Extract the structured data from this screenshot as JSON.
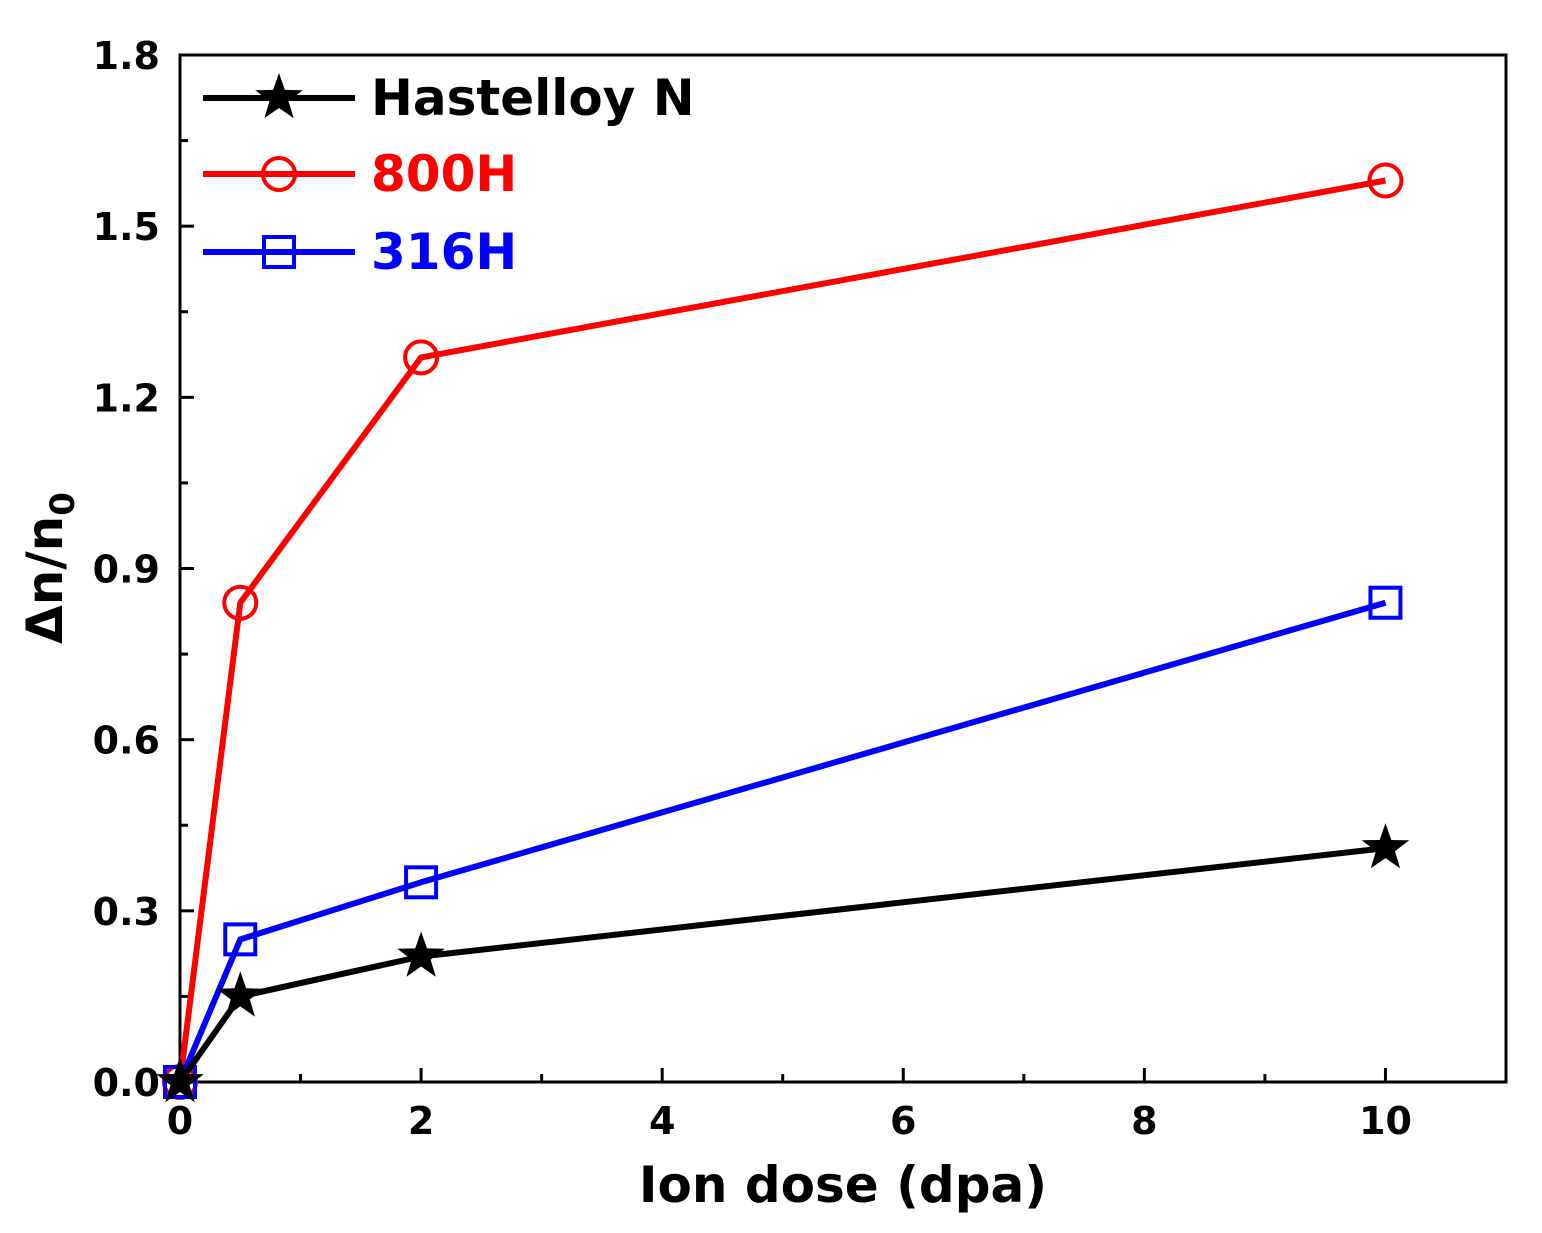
{
  "chart_data": {
    "type": "line",
    "xlabel": "Ion dose (dpa)",
    "ylabel_main": "Δn/n",
    "ylabel_subscript": "0",
    "xlim": [
      0,
      11
    ],
    "ylim": [
      0,
      1.8
    ],
    "xticks": [
      0,
      2,
      4,
      6,
      8,
      10
    ],
    "xtick_labels": [
      "0",
      "2",
      "4",
      "6",
      "8",
      "10"
    ],
    "xminor": [
      1,
      3,
      5,
      7,
      9,
      11
    ],
    "yticks": [
      0,
      0.3,
      0.6,
      0.9,
      1.2,
      1.5,
      1.8
    ],
    "ytick_labels": [
      "0.0",
      "0.3",
      "0.6",
      "0.9",
      "1.2",
      "1.5",
      "1.8"
    ],
    "yminor": [
      0.15,
      0.45,
      0.75,
      1.05,
      1.35,
      1.65
    ],
    "legend_position": "top-left",
    "series": [
      {
        "name": "Hastelloy N",
        "color": "#000000",
        "marker": "star",
        "x": [
          0,
          0.5,
          2,
          10
        ],
        "y": [
          0,
          0.15,
          0.22,
          0.41
        ]
      },
      {
        "name": "800H",
        "color": "#ff0000",
        "marker": "circle",
        "x": [
          0,
          0.5,
          2,
          10
        ],
        "y": [
          0,
          0.84,
          1.27,
          1.58
        ]
      },
      {
        "name": "316H",
        "color": "#0000ff",
        "marker": "square",
        "x": [
          0,
          0.5,
          2,
          10
        ],
        "y": [
          0,
          0.25,
          0.35,
          0.84
        ]
      }
    ]
  }
}
